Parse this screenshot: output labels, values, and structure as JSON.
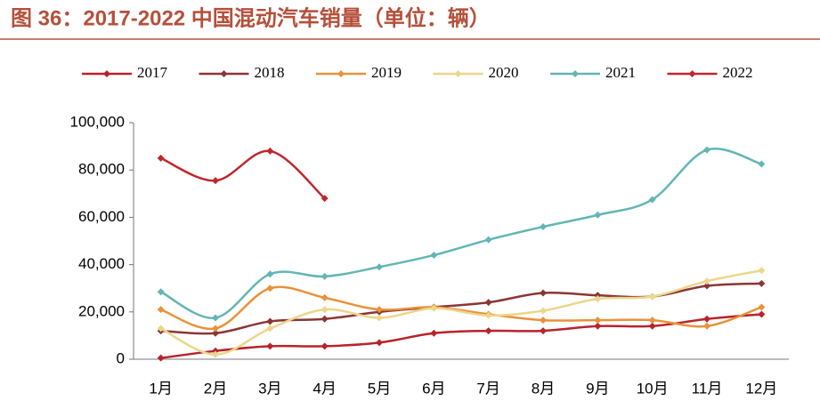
{
  "chart_data": {
    "type": "line",
    "title": "图 36：2017-2022 中国混动汽车销量（单位：辆）",
    "categories": [
      "1月",
      "2月",
      "3月",
      "4月",
      "5月",
      "6月",
      "7月",
      "8月",
      "9月",
      "10月",
      "11月",
      "12月"
    ],
    "series": [
      {
        "name": "2017",
        "color": "#b8232a",
        "values": [
          500,
          3500,
          5500,
          5500,
          7000,
          11000,
          12000,
          12000,
          14000,
          14000,
          17000,
          19000
        ]
      },
      {
        "name": "2018",
        "color": "#8b3535",
        "values": [
          12000,
          11000,
          16000,
          17000,
          20000,
          22000,
          24000,
          28000,
          27000,
          26500,
          31000,
          32000
        ]
      },
      {
        "name": "2019",
        "color": "#e8923a",
        "values": [
          21000,
          13000,
          30000,
          26000,
          21000,
          22000,
          19000,
          16500,
          16500,
          16500,
          14000,
          22000
        ]
      },
      {
        "name": "2020",
        "color": "#ecd68a",
        "values": [
          13000,
          2000,
          13000,
          21000,
          17500,
          21500,
          18500,
          20500,
          25500,
          26500,
          33000,
          37500
        ]
      },
      {
        "name": "2021",
        "color": "#62b6b4",
        "values": [
          28500,
          17500,
          36000,
          35000,
          39000,
          44000,
          50500,
          56000,
          61000,
          67500,
          88500,
          82500
        ]
      },
      {
        "name": "2022",
        "color": "#c0262d",
        "values": [
          85000,
          75500,
          88000,
          68000,
          null,
          null,
          null,
          null,
          null,
          null,
          null,
          null
        ]
      }
    ],
    "ylim": [
      0,
      100000
    ],
    "yticks": [
      0,
      {
        "value": 20000,
        "label": "20,000"
      },
      {
        "value": 40000,
        "label": "40,000"
      },
      {
        "value": 60000,
        "label": "60,000"
      },
      {
        "value": 80000,
        "label": "80,000"
      },
      {
        "value": 100000,
        "label": "100,000"
      }
    ],
    "grid": false
  }
}
